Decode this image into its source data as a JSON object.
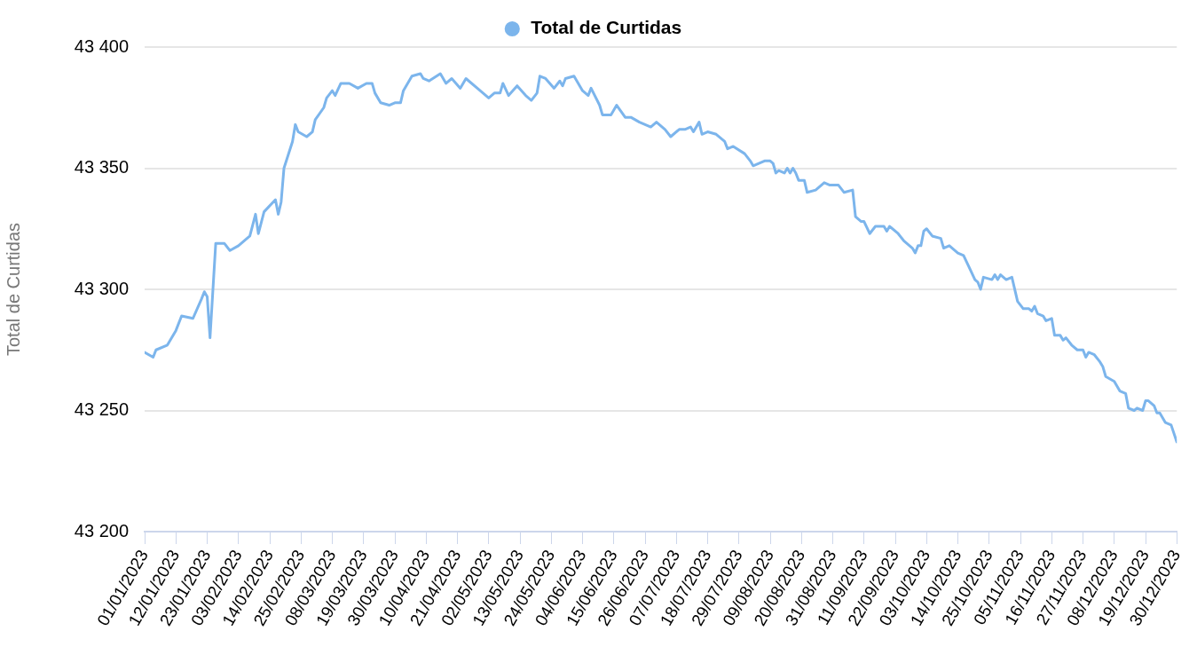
{
  "chart_data": {
    "type": "line",
    "ylabel": "Total de Curtidas",
    "legend": "top",
    "grid": "y",
    "marker": "none",
    "line_style": "solid",
    "xlim": [
      "2023-01-01",
      "2023-12-30"
    ],
    "ylim": [
      43200,
      43400
    ],
    "yticks": [
      {
        "value": 43200,
        "label": "43 200"
      },
      {
        "value": 43250,
        "label": "43 250"
      },
      {
        "value": 43300,
        "label": "43 300"
      },
      {
        "value": 43350,
        "label": "43 350"
      },
      {
        "value": 43400,
        "label": "43 400"
      }
    ],
    "xticks": [
      {
        "value": "2023-01-01",
        "label": "01/01/2023"
      },
      {
        "value": "2023-01-12",
        "label": "12/01/2023"
      },
      {
        "value": "2023-01-23",
        "label": "23/01/2023"
      },
      {
        "value": "2023-02-03",
        "label": "03/02/2023"
      },
      {
        "value": "2023-02-14",
        "label": "14/02/2023"
      },
      {
        "value": "2023-02-25",
        "label": "25/02/2023"
      },
      {
        "value": "2023-03-08",
        "label": "08/03/2023"
      },
      {
        "value": "2023-03-19",
        "label": "19/03/2023"
      },
      {
        "value": "2023-03-30",
        "label": "30/03/2023"
      },
      {
        "value": "2023-04-10",
        "label": "10/04/2023"
      },
      {
        "value": "2023-04-21",
        "label": "21/04/2023"
      },
      {
        "value": "2023-05-02",
        "label": "02/05/2023"
      },
      {
        "value": "2023-05-13",
        "label": "13/05/2023"
      },
      {
        "value": "2023-05-24",
        "label": "24/05/2023"
      },
      {
        "value": "2023-06-04",
        "label": "04/06/2023"
      },
      {
        "value": "2023-06-15",
        "label": "15/06/2023"
      },
      {
        "value": "2023-06-26",
        "label": "26/06/2023"
      },
      {
        "value": "2023-07-07",
        "label": "07/07/2023"
      },
      {
        "value": "2023-07-18",
        "label": "18/07/2023"
      },
      {
        "value": "2023-07-29",
        "label": "29/07/2023"
      },
      {
        "value": "2023-08-09",
        "label": "09/08/2023"
      },
      {
        "value": "2023-08-20",
        "label": "20/08/2023"
      },
      {
        "value": "2023-08-31",
        "label": "31/08/2023"
      },
      {
        "value": "2023-09-11",
        "label": "11/09/2023"
      },
      {
        "value": "2023-09-22",
        "label": "22/09/2023"
      },
      {
        "value": "2023-10-03",
        "label": "03/10/2023"
      },
      {
        "value": "2023-10-14",
        "label": "14/10/2023"
      },
      {
        "value": "2023-10-25",
        "label": "25/10/2023"
      },
      {
        "value": "2023-11-05",
        "label": "05/11/2023"
      },
      {
        "value": "2023-11-16",
        "label": "16/11/2023"
      },
      {
        "value": "2023-11-27",
        "label": "27/11/2023"
      },
      {
        "value": "2023-12-08",
        "label": "08/12/2023"
      },
      {
        "value": "2023-12-19",
        "label": "19/12/2023"
      },
      {
        "value": "2023-12-30",
        "label": "30/12/2023"
      }
    ],
    "x": [
      "2023-01-01",
      "2023-01-04",
      "2023-01-05",
      "2023-01-09",
      "2023-01-12",
      "2023-01-14",
      "2023-01-18",
      "2023-01-21",
      "2023-01-22",
      "2023-01-23",
      "2023-01-24",
      "2023-01-26",
      "2023-01-29",
      "2023-01-31",
      "2023-02-03",
      "2023-02-07",
      "2023-02-09",
      "2023-02-10",
      "2023-02-12",
      "2023-02-16",
      "2023-02-17",
      "2023-02-18",
      "2023-02-19",
      "2023-02-22",
      "2023-02-23",
      "2023-02-24",
      "2023-02-27",
      "2023-03-01",
      "2023-03-02",
      "2023-03-05",
      "2023-03-06",
      "2023-03-08",
      "2023-03-09",
      "2023-03-11",
      "2023-03-14",
      "2023-03-17",
      "2023-03-20",
      "2023-03-22",
      "2023-03-23",
      "2023-03-25",
      "2023-03-28",
      "2023-03-30",
      "2023-04-01",
      "2023-04-02",
      "2023-04-05",
      "2023-04-08",
      "2023-04-09",
      "2023-04-11",
      "2023-04-15",
      "2023-04-17",
      "2023-04-19",
      "2023-04-22",
      "2023-04-24",
      "2023-04-29",
      "2023-05-02",
      "2023-05-04",
      "2023-05-06",
      "2023-05-07",
      "2023-05-09",
      "2023-05-12",
      "2023-05-15",
      "2023-05-17",
      "2023-05-19",
      "2023-05-20",
      "2023-05-22",
      "2023-05-25",
      "2023-05-27",
      "2023-05-28",
      "2023-05-29",
      "2023-06-01",
      "2023-06-02",
      "2023-06-04",
      "2023-06-06",
      "2023-06-07",
      "2023-06-10",
      "2023-06-11",
      "2023-06-14",
      "2023-06-16",
      "2023-06-19",
      "2023-06-21",
      "2023-06-24",
      "2023-06-28",
      "2023-06-30",
      "2023-07-03",
      "2023-07-05",
      "2023-07-08",
      "2023-07-10",
      "2023-07-12",
      "2023-07-13",
      "2023-07-15",
      "2023-07-16",
      "2023-07-18",
      "2023-07-21",
      "2023-07-24",
      "2023-07-25",
      "2023-07-27",
      "2023-07-31",
      "2023-08-02",
      "2023-08-03",
      "2023-08-07",
      "2023-08-09",
      "2023-08-10",
      "2023-08-11",
      "2023-08-12",
      "2023-08-14",
      "2023-08-15",
      "2023-08-16",
      "2023-08-17",
      "2023-08-18",
      "2023-08-19",
      "2023-08-21",
      "2023-08-22",
      "2023-08-25",
      "2023-08-28",
      "2023-08-30",
      "2023-08-31",
      "2023-09-02",
      "2023-09-04",
      "2023-09-07",
      "2023-09-08",
      "2023-09-10",
      "2023-09-11",
      "2023-09-13",
      "2023-09-15",
      "2023-09-18",
      "2023-09-19",
      "2023-09-20",
      "2023-09-23",
      "2023-09-25",
      "2023-09-27",
      "2023-09-28",
      "2023-09-29",
      "2023-09-30",
      "2023-10-01",
      "2023-10-02",
      "2023-10-03",
      "2023-10-05",
      "2023-10-08",
      "2023-10-09",
      "2023-10-11",
      "2023-10-14",
      "2023-10-16",
      "2023-10-18",
      "2023-10-20",
      "2023-10-21",
      "2023-10-22",
      "2023-10-23",
      "2023-10-26",
      "2023-10-27",
      "2023-10-28",
      "2023-10-29",
      "2023-10-31",
      "2023-11-02",
      "2023-11-04",
      "2023-11-06",
      "2023-11-08",
      "2023-11-09",
      "2023-11-10",
      "2023-11-11",
      "2023-11-13",
      "2023-11-14",
      "2023-11-16",
      "2023-11-17",
      "2023-11-19",
      "2023-11-20",
      "2023-11-21",
      "2023-11-23",
      "2023-11-25",
      "2023-11-27",
      "2023-11-28",
      "2023-11-29",
      "2023-12-01",
      "2023-12-03",
      "2023-12-04",
      "2023-12-05",
      "2023-12-08",
      "2023-12-10",
      "2023-12-12",
      "2023-12-13",
      "2023-12-15",
      "2023-12-16",
      "2023-12-18",
      "2023-12-19",
      "2023-12-20",
      "2023-12-22",
      "2023-12-23",
      "2023-12-24",
      "2023-12-26",
      "2023-12-28",
      "2023-12-30"
    ],
    "series": [
      {
        "name": "Total de Curtidas",
        "color": "#7cb5ec",
        "values": [
          43274,
          43272,
          43275,
          43277,
          43283,
          43289,
          43288,
          43296,
          43299,
          43297,
          43280,
          43319,
          43319,
          43316,
          43318,
          43322,
          43331,
          43323,
          43332,
          43337,
          43331,
          43336,
          43350,
          43361,
          43368,
          43365,
          43363,
          43365,
          43370,
          43375,
          43379,
          43382,
          43380,
          43385,
          43385,
          43383,
          43385,
          43385,
          43381,
          43377,
          43376,
          43377,
          43377,
          43382,
          43388,
          43389,
          43387,
          43386,
          43389,
          43385,
          43387,
          43383,
          43387,
          43382,
          43379,
          43381,
          43381,
          43385,
          43380,
          43384,
          43380,
          43378,
          43381,
          43388,
          43387,
          43383,
          43386,
          43384,
          43387,
          43388,
          43386,
          43382,
          43380,
          43383,
          43376,
          43372,
          43372,
          43376,
          43371,
          43371,
          43369,
          43367,
          43369,
          43366,
          43363,
          43366,
          43366,
          43367,
          43365,
          43369,
          43364,
          43365,
          43364,
          43361,
          43358,
          43359,
          43356,
          43353,
          43351,
          43353,
          43353,
          43352,
          43348,
          43349,
          43348,
          43350,
          43348,
          43350,
          43348,
          43345,
          43345,
          43340,
          43341,
          43344,
          43343,
          43343,
          43343,
          43340,
          43341,
          43330,
          43328,
          43328,
          43323,
          43326,
          43326,
          43324,
          43326,
          43323,
          43320,
          43318,
          43317,
          43315,
          43318,
          43318,
          43324,
          43325,
          43322,
          43321,
          43317,
          43318,
          43315,
          43314,
          43309,
          43304,
          43303,
          43300,
          43305,
          43304,
          43306,
          43304,
          43306,
          43304,
          43305,
          43295,
          43292,
          43292,
          43291,
          43293,
          43290,
          43289,
          43287,
          43288,
          43281,
          43281,
          43279,
          43280,
          43277,
          43275,
          43275,
          43272,
          43274,
          43273,
          43270,
          43268,
          43264,
          43262,
          43258,
          43257,
          43251,
          43250,
          43251,
          43250,
          43254,
          43254,
          43252,
          43249,
          43249,
          43245,
          43244,
          43237
        ]
      }
    ]
  }
}
